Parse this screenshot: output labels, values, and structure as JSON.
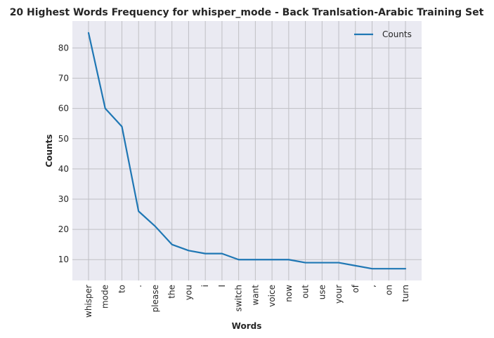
{
  "chart_data": {
    "type": "line",
    "title": "20 Highest Words Frequency for whisper_mode - Back Tranlsation-Arabic Training Set",
    "xlabel": "Words",
    "ylabel": "Counts",
    "categories": [
      "whisper",
      "mode",
      "to",
      ".",
      "please",
      "the",
      "you",
      "i",
      "I",
      "switch",
      "want",
      "voice",
      "now",
      "out",
      "use",
      "your",
      "of",
      ",",
      "on",
      "turn"
    ],
    "series": [
      {
        "name": "Counts",
        "values": [
          85,
          60,
          54,
          26,
          21,
          15,
          13,
          12,
          12,
          10,
          10,
          10,
          10,
          9,
          9,
          9,
          8,
          7,
          7,
          7
        ],
        "color": "#1f77b4"
      }
    ],
    "ylim": [
      3.1,
      88.9
    ],
    "yticks": [
      10,
      20,
      30,
      40,
      50,
      60,
      70,
      80
    ],
    "grid": true,
    "legend_position": "top-right",
    "background": "#eaeaf2"
  }
}
